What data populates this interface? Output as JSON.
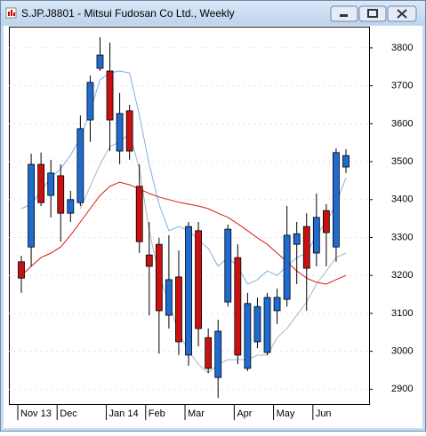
{
  "chart_data": {
    "type": "candlestick",
    "title": "S.JP.J8801 - Mitsui Fudosan Co Ltd., Weekly",
    "categories": [
      "Nov 13",
      null,
      null,
      null,
      "Dec",
      null,
      null,
      null,
      null,
      "Jan 14",
      null,
      null,
      null,
      "Feb",
      null,
      null,
      null,
      "Mar",
      null,
      null,
      null,
      null,
      "Apr",
      null,
      null,
      null,
      "May",
      null,
      null,
      null,
      "Jun",
      null,
      null,
      null
    ],
    "open": [
      3236,
      3275,
      3493,
      3411,
      3463,
      3364,
      3392,
      3610,
      3746,
      3739,
      3528,
      3634,
      3435,
      3254,
      3282,
      3095,
      3196,
      2990,
      3318,
      3036,
      2931,
      3130,
      3247,
      2955,
      3025,
      2997,
      3107,
      3137,
      3282,
      3329,
      3259,
      3371,
      3275,
      3486
    ],
    "high": [
      3252,
      3521,
      3524,
      3505,
      3493,
      3423,
      3622,
      3727,
      3828,
      3814,
      3681,
      3650,
      3493,
      3341,
      3299,
      3306,
      3266,
      3341,
      3341,
      3060,
      3083,
      3334,
      3282,
      3154,
      3142,
      3154,
      3165,
      3383,
      3341,
      3364,
      3416,
      3388,
      3535,
      3533
    ],
    "low": [
      3154,
      3224,
      3383,
      3353,
      3289,
      3341,
      3383,
      3552,
      3739,
      3528,
      3493,
      3505,
      3259,
      3095,
      2994,
      3060,
      2990,
      2962,
      3013,
      2943,
      2877,
      3118,
      2966,
      2948,
      3008,
      2990,
      3072,
      3118,
      3177,
      3107,
      3224,
      3224,
      3236,
      3470
    ],
    "close": [
      3193,
      3493,
      3392,
      3470,
      3364,
      3400,
      3587,
      3709,
      3781,
      3610,
      3627,
      3528,
      3289,
      3224,
      3107,
      3189,
      3025,
      3329,
      3060,
      2955,
      3053,
      3322,
      2990,
      3126,
      3118,
      3142,
      3142,
      3306,
      3310,
      3219,
      3353,
      3313,
      3524,
      3516
    ],
    "up_color": "#1f6bd0",
    "down_color": "#c81212",
    "lines": [
      {
        "color": "#7fb0e8",
        "values": [
          3376,
          3388,
          3423,
          3458,
          3481,
          3517,
          3563,
          3634,
          3716,
          3734,
          3739,
          3734,
          3622,
          3493,
          3388,
          3318,
          3329,
          3318,
          3294,
          3271,
          3224,
          3247,
          3224,
          3177,
          3189,
          3212,
          3200,
          3224,
          3247,
          3259,
          3306,
          3341,
          3388,
          3458
        ]
      },
      {
        "color": "#a8b4c4",
        "values": [
          null,
          null,
          null,
          null,
          null,
          null,
          3376,
          3435,
          3493,
          3540,
          3552,
          3575,
          3481,
          3318,
          3200,
          3130,
          3048,
          3001,
          2966,
          2943,
          2966,
          2978,
          2978,
          2978,
          2990,
          2990,
          3036,
          3060,
          3095,
          3130,
          3177,
          3212,
          3247,
          3259
        ]
      },
      {
        "color": "#d81818",
        "values": [
          3200,
          3224,
          3247,
          3259,
          3275,
          3306,
          3341,
          3376,
          3411,
          3435,
          3446,
          3439,
          3428,
          3416,
          3407,
          3400,
          3393,
          3388,
          3383,
          3376,
          3364,
          3353,
          3336,
          3318,
          3299,
          3282,
          3259,
          3236,
          3212,
          3193,
          3182,
          3177,
          3189,
          3200
        ]
      }
    ],
    "ylim": [
      2861,
      3856
    ],
    "yticks": [
      2900,
      3000,
      3100,
      3200,
      3300,
      3400,
      3500,
      3600,
      3700,
      3800
    ],
    "grid": true
  }
}
